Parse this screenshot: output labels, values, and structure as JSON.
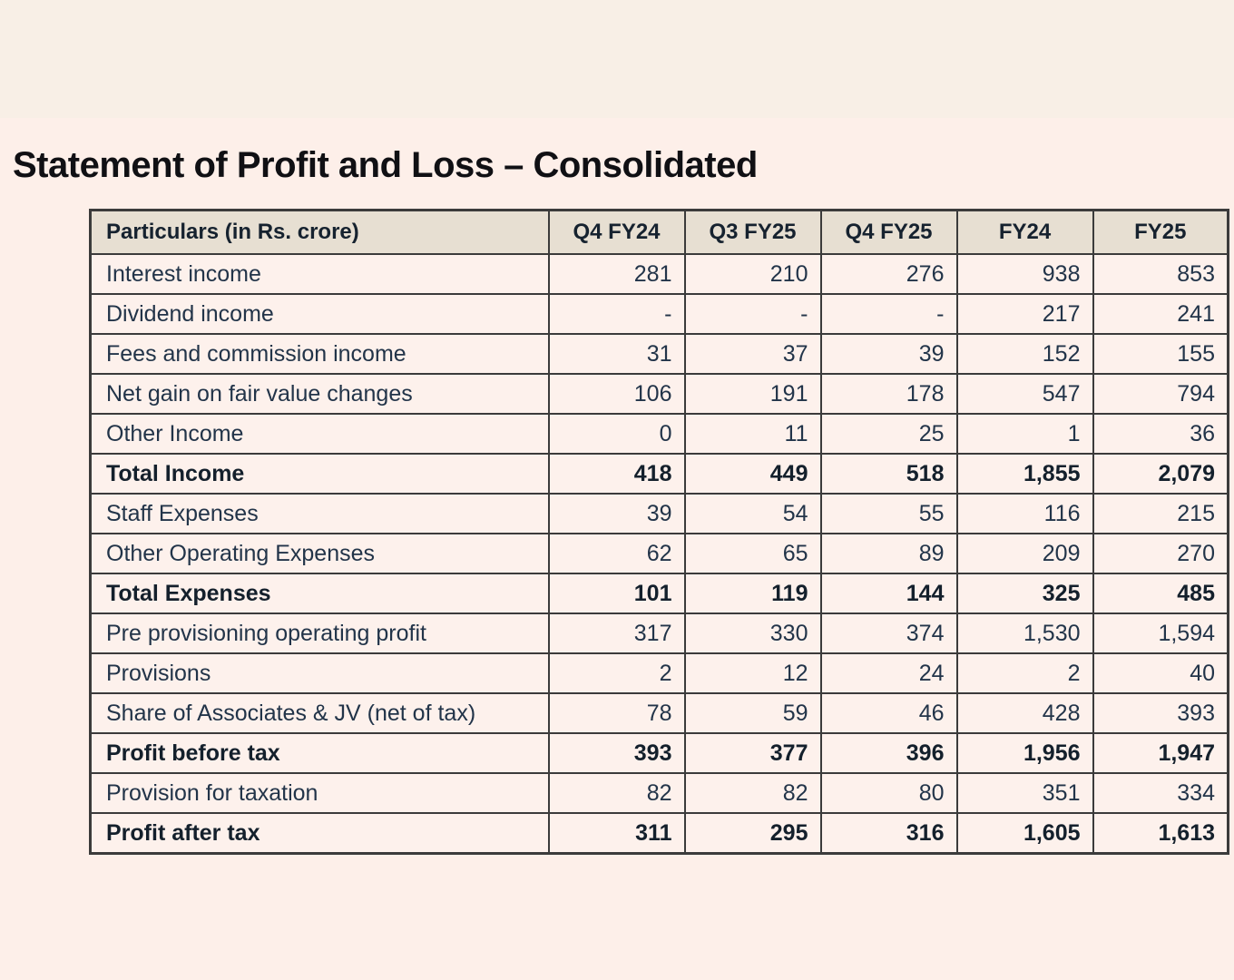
{
  "page": {
    "title": "Statement of Profit and Loss – Consolidated"
  },
  "colors": {
    "page_background": "#fdefe9",
    "top_band_background": "#f8efe6",
    "header_row_background": "#e7dfd2",
    "cell_background": "#fdf1ec",
    "grid_border": "#3b3b3b",
    "body_text": "#223449",
    "emphasis_text": "#14202c"
  },
  "table": {
    "columns": [
      "Particulars (in Rs. crore)",
      "Q4 FY24",
      "Q3 FY25",
      "Q4 FY25",
      "FY24",
      "FY25"
    ],
    "rows": [
      {
        "label": "Interest income",
        "bold": false,
        "values": [
          "281",
          "210",
          "276",
          "938",
          "853"
        ]
      },
      {
        "label": "Dividend income",
        "bold": false,
        "values": [
          "-",
          "-",
          "-",
          "217",
          "241"
        ]
      },
      {
        "label": "Fees and commission income",
        "bold": false,
        "values": [
          "31",
          "37",
          "39",
          "152",
          "155"
        ]
      },
      {
        "label": "Net gain on fair value changes",
        "bold": false,
        "values": [
          "106",
          "191",
          "178",
          "547",
          "794"
        ]
      },
      {
        "label": "Other Income",
        "bold": false,
        "values": [
          "0",
          "11",
          "25",
          "1",
          "36"
        ]
      },
      {
        "label": "Total Income",
        "bold": true,
        "values": [
          "418",
          "449",
          "518",
          "1,855",
          "2,079"
        ]
      },
      {
        "label": "Staff Expenses",
        "bold": false,
        "values": [
          "39",
          "54",
          "55",
          "116",
          "215"
        ]
      },
      {
        "label": "Other Operating Expenses",
        "bold": false,
        "values": [
          "62",
          "65",
          "89",
          "209",
          "270"
        ]
      },
      {
        "label": "Total Expenses",
        "bold": true,
        "values": [
          "101",
          "119",
          "144",
          "325",
          "485"
        ]
      },
      {
        "label": "Pre provisioning operating profit",
        "bold": false,
        "values": [
          "317",
          "330",
          "374",
          "1,530",
          "1,594"
        ]
      },
      {
        "label": "Provisions",
        "bold": false,
        "values": [
          "2",
          "12",
          "24",
          "2",
          "40"
        ]
      },
      {
        "label": "Share of Associates & JV (net of tax)",
        "bold": false,
        "values": [
          "78",
          "59",
          "46",
          "428",
          "393"
        ]
      },
      {
        "label": "Profit before tax",
        "bold": true,
        "values": [
          "393",
          "377",
          "396",
          "1,956",
          "1,947"
        ]
      },
      {
        "label": "Provision for taxation",
        "bold": false,
        "values": [
          "82",
          "82",
          "80",
          "351",
          "334"
        ]
      },
      {
        "label": "Profit after tax",
        "bold": true,
        "values": [
          "311",
          "295",
          "316",
          "1,605",
          "1,613"
        ]
      }
    ]
  }
}
